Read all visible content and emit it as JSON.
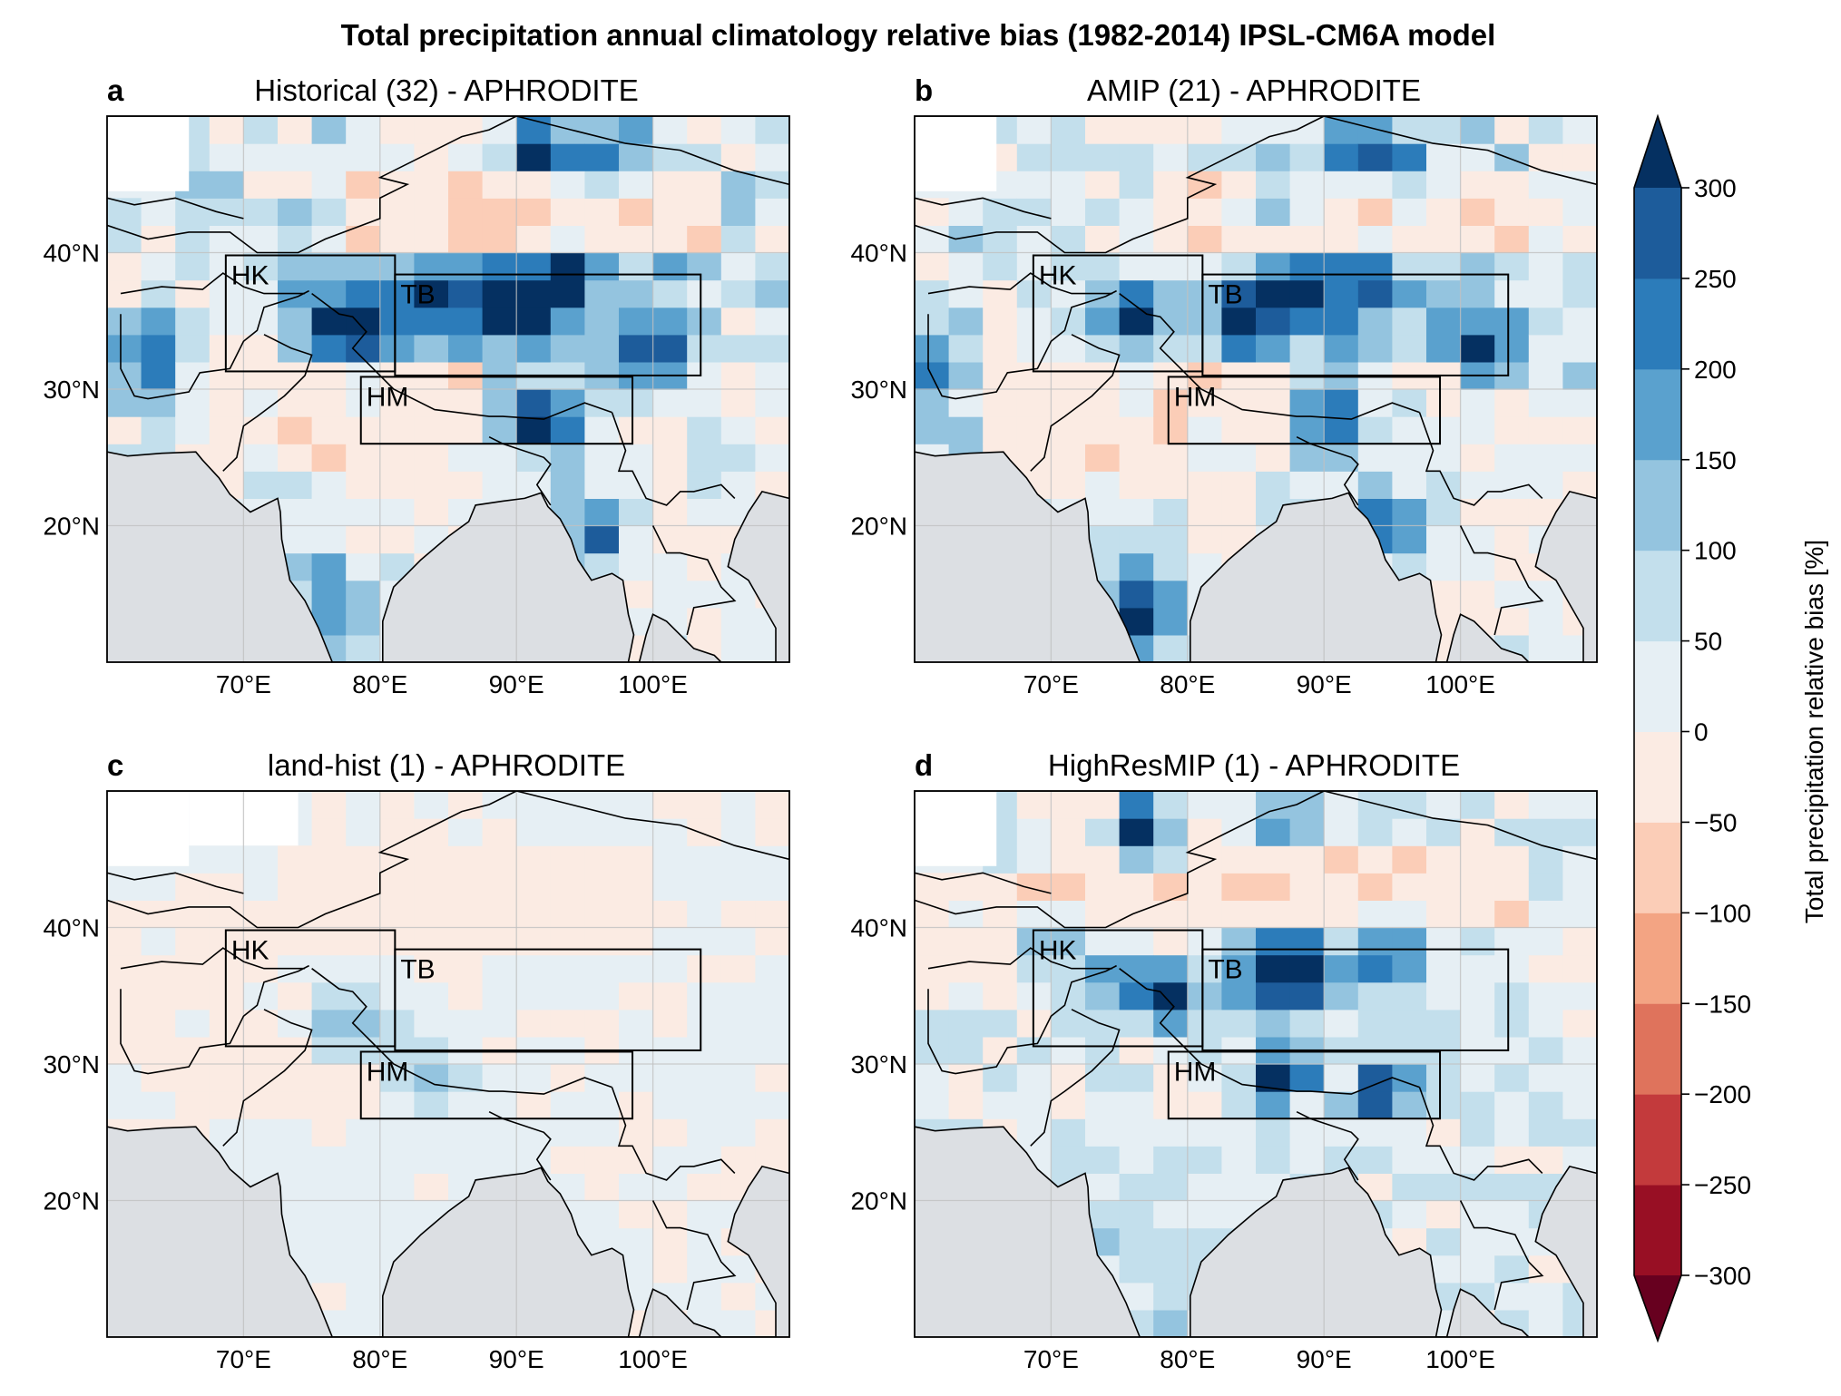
{
  "figure": {
    "title": "Total precipitation annual climatology relative bias (1982-2014) IPSL-CM6A model"
  },
  "axes_ticks": {
    "lon": [
      "70°E",
      "80°E",
      "90°E",
      "100°E"
    ],
    "lon_values": [
      70,
      80,
      90,
      100
    ],
    "lat": [
      "40°N",
      "30°N",
      "20°N"
    ],
    "lat_values": [
      40,
      30,
      20
    ]
  },
  "map_extent": {
    "lon_min": 60,
    "lon_max": 110,
    "lat_min": 10,
    "lat_max": 50
  },
  "regions": [
    {
      "label": "HK",
      "lon": [
        68.7,
        81.1
      ],
      "lat": [
        31.3,
        39.8
      ]
    },
    {
      "label": "TB",
      "lon": [
        81.1,
        103.5
      ],
      "lat": [
        31.0,
        38.4
      ]
    },
    {
      "label": "HM",
      "lon": [
        78.6,
        98.5
      ],
      "lat": [
        26.0,
        30.9
      ]
    }
  ],
  "colorbar": {
    "label": "Total precipitation relative bias [%]",
    "ticks": [
      "300",
      "250",
      "200",
      "150",
      "100",
      "50",
      "0",
      "−50",
      "−100",
      "−150",
      "−200",
      "−250",
      "−300"
    ],
    "levels": [
      -300,
      -250,
      -200,
      -150,
      -100,
      -50,
      0,
      50,
      100,
      150,
      200,
      250,
      300
    ],
    "colors": [
      "#980f24",
      "#c33a3c",
      "#df735c",
      "#f3a483",
      "#fbcdb7",
      "#fbebe3",
      "#e6eff4",
      "#c3dfec",
      "#94c4df",
      "#5aa1ce",
      "#2c7cba",
      "#1d5c9b"
    ],
    "extend_low_color": "#67001f",
    "extend_high_color": "#053061"
  },
  "colors": {
    "ocean": "#dcdfe3",
    "land_base": "#e6eff4",
    "grid": "#c0c0c0"
  },
  "panels": [
    {
      "letter": "a",
      "title": "Historical (32) - APHRODITE",
      "style": "historical",
      "hotspots": [
        {
          "lon": 89,
          "lat": 36.5,
          "v": 320
        },
        {
          "lon": 84,
          "lat": 36.5,
          "v": 280
        },
        {
          "lon": 93,
          "lat": 37.5,
          "v": 300
        },
        {
          "lon": 76,
          "lat": 35.5,
          "v": 260
        },
        {
          "lon": 79,
          "lat": 34.5,
          "v": 300
        },
        {
          "lon": 92,
          "lat": 28,
          "v": 300
        },
        {
          "lon": 95,
          "lat": 20,
          "v": 230
        },
        {
          "lon": 76,
          "lat": 16,
          "v": 200
        },
        {
          "lon": 77,
          "lat": 12,
          "v": 220
        },
        {
          "lon": 92,
          "lat": 48,
          "v": 280
        },
        {
          "lon": 97,
          "lat": 47,
          "v": 170
        },
        {
          "lon": 62,
          "lat": 33,
          "v": 160
        },
        {
          "lon": 100,
          "lat": 32,
          "v": 200
        },
        {
          "lon": 64,
          "lat": 29,
          "v": 130
        }
      ]
    },
    {
      "letter": "b",
      "title": "AMIP (21) - APHRODITE",
      "style": "amip",
      "hotspots": [
        {
          "lon": 88,
          "lat": 36.5,
          "v": 300
        },
        {
          "lon": 84,
          "lat": 35.5,
          "v": 280
        },
        {
          "lon": 76,
          "lat": 35,
          "v": 280
        },
        {
          "lon": 93,
          "lat": 37.5,
          "v": 220
        },
        {
          "lon": 91,
          "lat": 28,
          "v": 280
        },
        {
          "lon": 95,
          "lat": 20.5,
          "v": 190
        },
        {
          "lon": 77,
          "lat": 13,
          "v": 260
        },
        {
          "lon": 76,
          "lat": 16,
          "v": 200
        },
        {
          "lon": 92,
          "lat": 48,
          "v": 260
        },
        {
          "lon": 96,
          "lat": 46,
          "v": 160
        },
        {
          "lon": 62,
          "lat": 32,
          "v": 150
        },
        {
          "lon": 102,
          "lat": 33,
          "v": 200
        },
        {
          "lon": 87,
          "lat": 43.5,
          "v": 190
        }
      ]
    },
    {
      "letter": "c",
      "title": "land-hist (1) - APHRODITE",
      "style": "landhist",
      "hotspots": [
        {
          "lon": 77,
          "lat": 32.5,
          "v": 110
        },
        {
          "lon": 83,
          "lat": 29.5,
          "v": 110
        },
        {
          "lon": 86,
          "lat": 28.5,
          "v": 80
        },
        {
          "lon": 80,
          "lat": 33.5,
          "v": 70
        }
      ]
    },
    {
      "letter": "d",
      "title": "HighResMIP (1) - APHRODITE",
      "style": "highres",
      "hotspots": [
        {
          "lon": 89,
          "lat": 37,
          "v": 300
        },
        {
          "lon": 86,
          "lat": 36.5,
          "v": 280
        },
        {
          "lon": 79,
          "lat": 35,
          "v": 280
        },
        {
          "lon": 75,
          "lat": 36,
          "v": 240
        },
        {
          "lon": 94,
          "lat": 28,
          "v": 300
        },
        {
          "lon": 87,
          "lat": 29.5,
          "v": 280
        },
        {
          "lon": 77,
          "lat": 47,
          "v": 280
        },
        {
          "lon": 87,
          "lat": 48,
          "v": 200
        },
        {
          "lon": 95,
          "lat": 38.5,
          "v": 260
        },
        {
          "lon": 70,
          "lat": 38,
          "v": 180
        }
      ]
    }
  ]
}
